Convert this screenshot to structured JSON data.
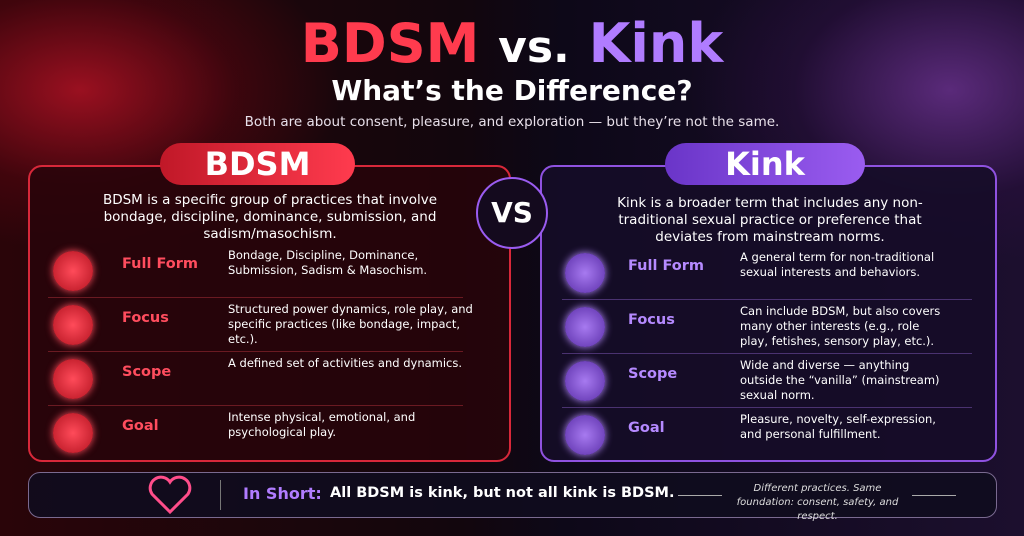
{
  "header": {
    "title_left": "BDSM",
    "title_mid": "vs.",
    "title_right": "Kink",
    "subtitle": "What’s the Difference?",
    "tagline": "Both are about consent, pleasure, and exploration — but they’re not the same."
  },
  "vs": "VS",
  "panels": [
    {
      "heading": "BDSM",
      "description": "BDSM is a specific group of practices that involve bondage, discipline, dominance, submission, and sadism/masochism.",
      "rows": [
        {
          "label": "Full Form",
          "text": "Bondage, Discipline, Dominance, Submission, Sadism & Masochism."
        },
        {
          "label": "Focus",
          "text": "Structured power dynamics, role play, and specific practices (like bondage, impact, etc.)."
        },
        {
          "label": "Scope",
          "text": "A defined set of activities and dynamics."
        },
        {
          "label": "Goal",
          "text": "Intense physical, emotional, and psychological play."
        }
      ]
    },
    {
      "heading": "Kink",
      "description": "Kink is a broader term that includes any non-traditional sexual practice or preference that deviates from mainstream norms.",
      "rows": [
        {
          "label": "Full Form",
          "text": "A general term for non-traditional sexual interests and behaviors."
        },
        {
          "label": "Focus",
          "text": "Can include BDSM, but also covers many other interests (e.g., role play, fetishes, sensory play, etc.)."
        },
        {
          "label": "Scope",
          "text": "Wide and diverse — anything outside the “vanilla” (mainstream) sexual norm."
        },
        {
          "label": "Goal",
          "text": "Pleasure, novelty, self-expression, and personal fulfillment."
        }
      ]
    }
  ],
  "footer": {
    "label": "In Short:",
    "text": "All BDSM is kink, but not all kink is BDSM.",
    "note": "Different practices. Same foundation: consent, safety, and respect."
  }
}
